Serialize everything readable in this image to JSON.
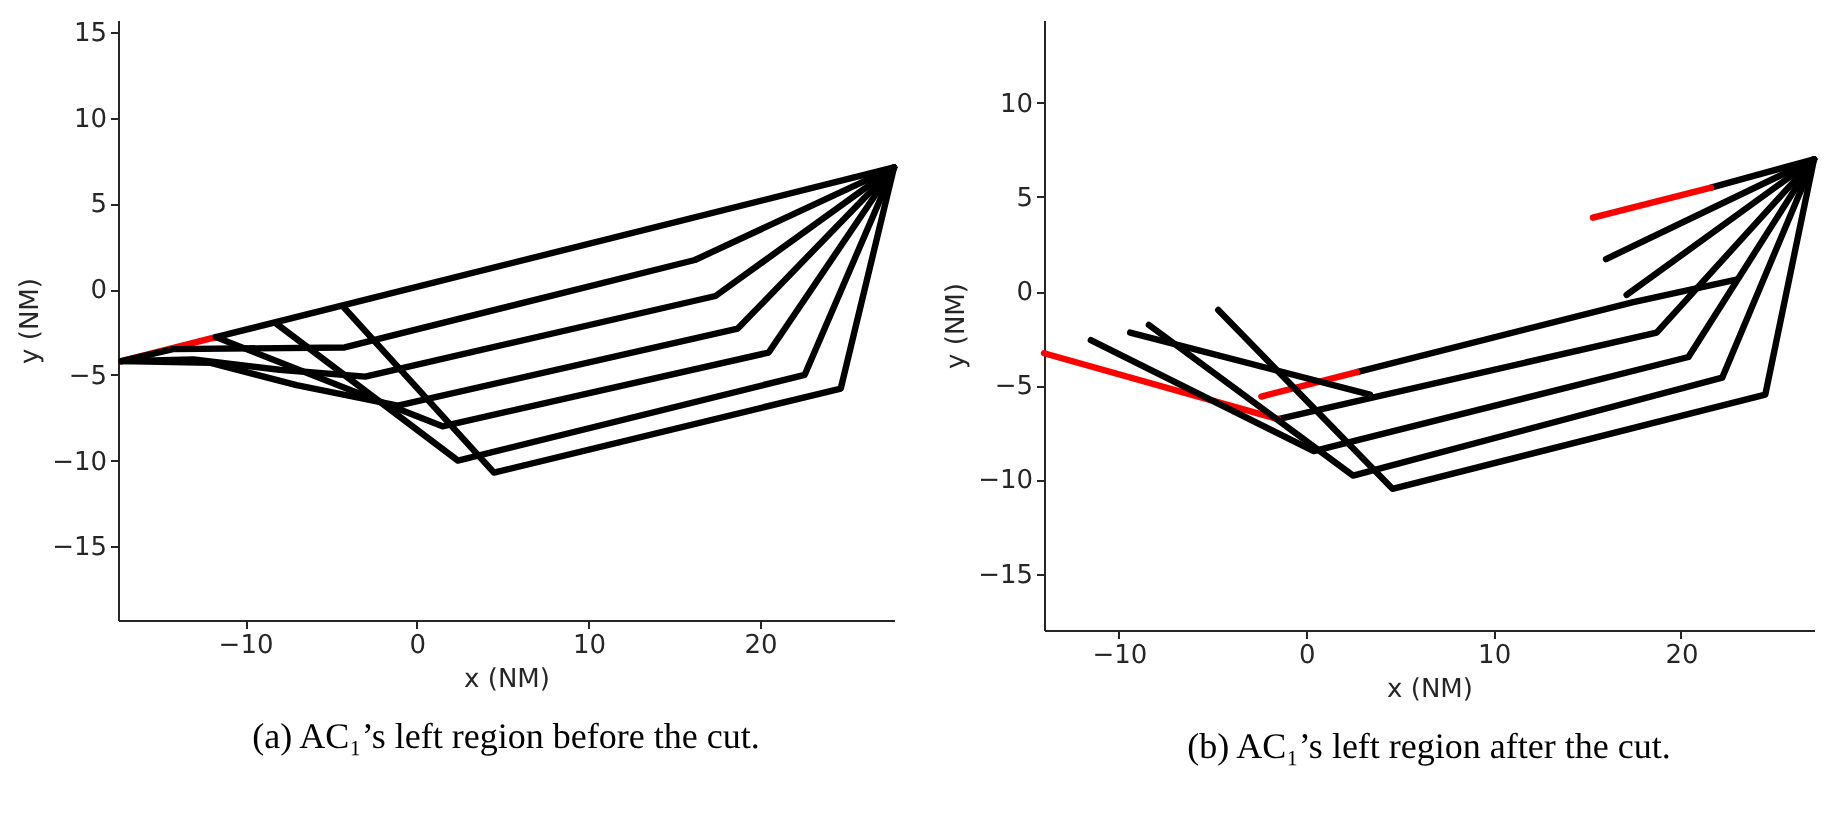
{
  "chart_data": [
    {
      "type": "line",
      "title": "(a) AC₁’s left region before the cut.",
      "xlabel": "x (NM)",
      "ylabel": "y (NM)",
      "xlim": [
        -17.4,
        27.8
      ],
      "ylim": [
        -19.3,
        15.7
      ],
      "xticks": [
        -10,
        0,
        10,
        20
      ],
      "yticks": [
        -15,
        -10,
        -5,
        0,
        5,
        10,
        15
      ],
      "grid": false,
      "series": [
        {
          "color": "#ff0000",
          "x": [
            -17.2,
            -11.7
          ],
          "values": [
            -4.2,
            -2.8
          ]
        },
        {
          "color": "#000000",
          "x": [
            -11.7,
            27.8
          ],
          "values": [
            -2.8,
            7.1
          ]
        },
        {
          "color": "#000000",
          "x": [
            -17.2,
            -14.2,
            -4.2,
            16.2,
            27.8
          ],
          "values": [
            -4.2,
            -3.5,
            -3.4,
            1.7,
            7.1
          ]
        },
        {
          "color": "#000000",
          "x": [
            -17.2,
            -13,
            -8,
            -3,
            17.4,
            27.8
          ],
          "values": [
            -4.2,
            -4.1,
            -4.7,
            -5.1,
            -0.4,
            7.1
          ]
        },
        {
          "color": "#000000",
          "x": [
            -17.2,
            -12,
            -7,
            -1.1,
            18.7,
            27.8
          ],
          "values": [
            -4.2,
            -4.3,
            -5.6,
            -6.8,
            -2.3,
            7.1
          ]
        },
        {
          "color": "#000000",
          "x": [
            -11.7,
            1.5,
            20.5,
            27.8
          ],
          "values": [
            -2.8,
            -8.0,
            -3.7,
            7.1
          ]
        },
        {
          "color": "#000000",
          "x": [
            -8.2,
            2.4,
            22.6,
            27.8
          ],
          "values": [
            -2.0,
            -10,
            -5,
            7.1
          ]
        },
        {
          "color": "#000000",
          "x": [
            -4.3,
            4.5,
            24.7,
            27.8
          ],
          "values": [
            -1.0,
            -10.7,
            -5.8,
            7.1
          ]
        }
      ]
    },
    {
      "type": "line",
      "title": "(b) AC₁’s left region after the cut.",
      "xlabel": "x (NM)",
      "ylabel": "y (NM)",
      "xlim": [
        -14,
        27.1
      ],
      "ylim": [
        -18,
        14.4
      ],
      "xticks": [
        -10,
        0,
        10,
        20
      ],
      "yticks": [
        -15,
        -10,
        -5,
        0,
        5,
        10
      ],
      "grid": false,
      "series": [
        {
          "color": "#000000",
          "x": [
            -1.5,
            18.7,
            27.1
          ],
          "values": [
            -6.8,
            -2.2,
            7.0
          ]
        },
        {
          "color": "#ff0000",
          "x": [
            -14,
            -1.5
          ],
          "values": [
            -3.3,
            -6.8
          ]
        },
        {
          "color": "#000000",
          "x": [
            2.7,
            17.4,
            22.9
          ],
          "values": [
            -4.3,
            -0.6,
            0.6
          ]
        },
        {
          "color": "#ff0000",
          "x": [
            -2.4,
            2.7
          ],
          "values": [
            -5.6,
            -4.3
          ]
        },
        {
          "color": "#000000",
          "x": [
            21.6,
            27.1
          ],
          "values": [
            5.5,
            7.0
          ]
        },
        {
          "color": "#ff0000",
          "x": [
            15.3,
            21.6
          ],
          "values": [
            3.9,
            5.5
          ]
        },
        {
          "color": "#000000",
          "x": [
            16,
            27.1
          ],
          "values": [
            1.7,
            7.0
          ]
        },
        {
          "color": "#000000",
          "x": [
            17.1,
            27.1
          ],
          "values": [
            -0.2,
            7.0
          ]
        },
        {
          "color": "#000000",
          "x": [
            -9.4,
            3.4
          ],
          "values": [
            -2.2,
            -5.5
          ]
        },
        {
          "color": "#000000",
          "x": [
            -11.5,
            0.4,
            20.4,
            27.1
          ],
          "values": [
            -2.6,
            -8.5,
            -3.5,
            7.0
          ]
        },
        {
          "color": "#000000",
          "x": [
            -8.4,
            2.5,
            22.2,
            27.1
          ],
          "values": [
            -1.8,
            -9.8,
            -4.6,
            7.0
          ]
        },
        {
          "color": "#000000",
          "x": [
            -4.7,
            4.6,
            24.5,
            27.1
          ],
          "values": [
            -1.0,
            -10.5,
            -5.5,
            7.0
          ]
        }
      ]
    }
  ]
}
